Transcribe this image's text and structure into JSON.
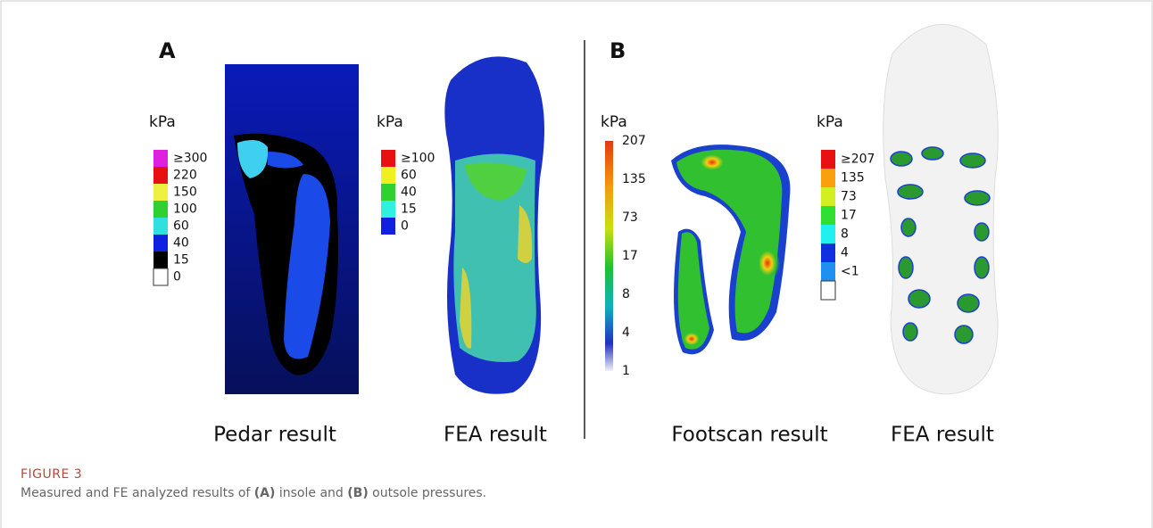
{
  "figure": {
    "panels": [
      {
        "label": "A",
        "images": [
          {
            "caption": "Pedar result",
            "legend": {
              "unit": "kPa",
              "labels": [
                "≥300",
                "220",
                "150",
                "100",
                "60",
                "40",
                "15",
                "0"
              ]
            }
          },
          {
            "caption": "FEA result",
            "legend": {
              "unit": "kPa",
              "labels": [
                "≥100",
                "60",
                "40",
                "15",
                "0"
              ]
            }
          }
        ]
      },
      {
        "label": "B",
        "images": [
          {
            "caption": "Footscan result",
            "legend": {
              "unit": "kPa",
              "labels": [
                "207",
                "135",
                "73",
                "17",
                "8",
                "4",
                "1"
              ]
            }
          },
          {
            "caption": "FEA result",
            "legend": {
              "unit": "kPa",
              "labels": [
                "≥207",
                "135",
                "73",
                "17",
                "8",
                "4",
                "<1"
              ]
            }
          }
        ]
      }
    ],
    "label": "FIGURE 3",
    "caption": [
      "Measured and FE analyzed results of ",
      "(A)",
      " insole and ",
      "(B)",
      " outsole pressures."
    ]
  }
}
